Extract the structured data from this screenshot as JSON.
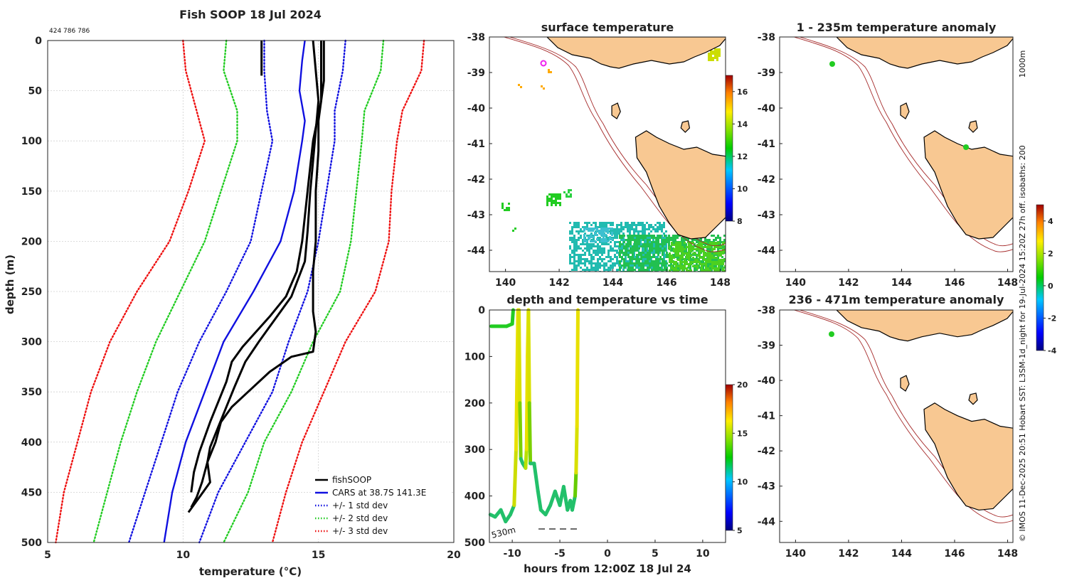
{
  "chart_data": [
    {
      "type": "line",
      "title": "Fish SOOP 18 Jul 2024",
      "subtitle": "424 786 786",
      "xlabel": "temperature (°C)",
      "ylabel": "depth (m)",
      "xlim": [
        5,
        20
      ],
      "ylim": [
        500,
        0
      ],
      "xticks": [
        "5",
        "10",
        "15",
        "20"
      ],
      "yticks": [
        "0",
        "50",
        "100",
        "150",
        "200",
        "250",
        "300",
        "350",
        "400",
        "450",
        "500"
      ],
      "legend": {
        "position": "bottom-right",
        "entries": [
          "fishSOOP",
          "CARS at 38.7S 141.3E",
          "+/- 1 std dev",
          "+/- 2 std dev",
          "+/- 3 std dev"
        ]
      },
      "series": [
        {
          "name": "CARS at 38.7S 141.3E",
          "color": "#1010e0",
          "style": "solid",
          "points": [
            [
              14.5,
              0
            ],
            [
              14.4,
              20
            ],
            [
              14.3,
              50
            ],
            [
              14.5,
              80
            ],
            [
              14.4,
              100
            ],
            [
              14.1,
              150
            ],
            [
              13.6,
              200
            ],
            [
              12.6,
              250
            ],
            [
              11.5,
              300
            ],
            [
              10.8,
              350
            ],
            [
              10.1,
              400
            ],
            [
              9.6,
              450
            ],
            [
              9.3,
              500
            ]
          ]
        },
        {
          "name": "+/- 1 std dev (high)",
          "color": "#1010e0",
          "style": "dotted",
          "points": [
            [
              16.0,
              0
            ],
            [
              15.9,
              30
            ],
            [
              15.6,
              70
            ],
            [
              15.6,
              100
            ],
            [
              15.3,
              150
            ],
            [
              15.0,
              200
            ],
            [
              14.6,
              250
            ],
            [
              13.9,
              300
            ],
            [
              13.3,
              350
            ],
            [
              12.3,
              400
            ],
            [
              11.3,
              450
            ],
            [
              10.6,
              500
            ]
          ]
        },
        {
          "name": "+/- 1 std dev (low)",
          "color": "#1010e0",
          "style": "dotted",
          "points": [
            [
              13.0,
              0
            ],
            [
              13.0,
              30
            ],
            [
              13.1,
              70
            ],
            [
              13.3,
              100
            ],
            [
              12.9,
              150
            ],
            [
              12.5,
              200
            ],
            [
              11.6,
              250
            ],
            [
              10.6,
              300
            ],
            [
              9.8,
              350
            ],
            [
              9.2,
              400
            ],
            [
              8.6,
              450
            ],
            [
              8.0,
              500
            ]
          ]
        },
        {
          "name": "+/- 2 std dev (high)",
          "color": "#22cc22",
          "style": "dotted",
          "points": [
            [
              17.4,
              0
            ],
            [
              17.3,
              30
            ],
            [
              16.7,
              70
            ],
            [
              16.6,
              100
            ],
            [
              16.4,
              150
            ],
            [
              16.2,
              200
            ],
            [
              15.8,
              250
            ],
            [
              14.8,
              300
            ],
            [
              14.0,
              350
            ],
            [
              13.0,
              400
            ],
            [
              12.4,
              450
            ],
            [
              11.5,
              500
            ]
          ]
        },
        {
          "name": "+/- 2 std dev (low)",
          "color": "#22cc22",
          "style": "dotted",
          "points": [
            [
              11.6,
              0
            ],
            [
              11.5,
              30
            ],
            [
              12.0,
              70
            ],
            [
              12.0,
              100
            ],
            [
              11.4,
              150
            ],
            [
              10.8,
              200
            ],
            [
              9.9,
              250
            ],
            [
              9.0,
              300
            ],
            [
              8.3,
              350
            ],
            [
              7.7,
              400
            ],
            [
              7.2,
              450
            ],
            [
              6.7,
              500
            ]
          ]
        },
        {
          "name": "+/- 3 std dev (high)",
          "color": "#ee1111",
          "style": "dotted",
          "points": [
            [
              18.9,
              0
            ],
            [
              18.8,
              30
            ],
            [
              18.1,
              70
            ],
            [
              17.9,
              100
            ],
            [
              17.7,
              150
            ],
            [
              17.6,
              200
            ],
            [
              17.1,
              250
            ],
            [
              16.0,
              300
            ],
            [
              15.2,
              350
            ],
            [
              14.4,
              400
            ],
            [
              13.8,
              450
            ],
            [
              13.3,
              500
            ]
          ]
        },
        {
          "name": "+/- 3 std dev (low)",
          "color": "#ee1111",
          "style": "dotted",
          "points": [
            [
              10.0,
              0
            ],
            [
              10.1,
              30
            ],
            [
              10.5,
              70
            ],
            [
              10.8,
              100
            ],
            [
              10.2,
              150
            ],
            [
              9.5,
              200
            ],
            [
              8.3,
              250
            ],
            [
              7.3,
              300
            ],
            [
              6.6,
              350
            ],
            [
              6.1,
              400
            ],
            [
              5.6,
              450
            ],
            [
              5.3,
              500
            ]
          ]
        },
        {
          "name": "fishSOOP",
          "color": "#000000",
          "style": "solid",
          "points": [
            [
              12.9,
              0
            ],
            [
              12.9,
              35
            ]
          ]
        },
        {
          "name": "fishSOOP",
          "color": "#000000",
          "style": "solid",
          "points": [
            [
              14.8,
              0
            ],
            [
              14.9,
              30
            ],
            [
              15.0,
              60
            ],
            [
              14.9,
              90
            ],
            [
              14.8,
              120
            ],
            [
              14.7,
              150
            ],
            [
              14.6,
              190
            ],
            [
              14.5,
              220
            ],
            [
              14.0,
              255
            ],
            [
              13.6,
              270
            ],
            [
              13.2,
              285
            ],
            [
              12.8,
              300
            ],
            [
              12.3,
              320
            ],
            [
              11.9,
              345
            ],
            [
              11.6,
              365
            ],
            [
              11.3,
              385
            ],
            [
              11.0,
              405
            ],
            [
              10.9,
              420
            ],
            [
              11.0,
              440
            ],
            [
              10.6,
              455
            ],
            [
              10.2,
              470
            ]
          ]
        },
        {
          "name": "fishSOOP",
          "color": "#000000",
          "style": "solid",
          "points": [
            [
              15.2,
              0
            ],
            [
              15.2,
              40
            ],
            [
              15.0,
              80
            ],
            [
              15.0,
              110
            ],
            [
              14.9,
              150
            ],
            [
              14.9,
              200
            ],
            [
              14.8,
              230
            ],
            [
              14.8,
              270
            ],
            [
              14.9,
              290
            ],
            [
              14.8,
              310
            ],
            [
              14.0,
              315
            ],
            [
              13.2,
              330
            ],
            [
              12.4,
              350
            ],
            [
              11.8,
              365
            ],
            [
              11.4,
              380
            ],
            [
              11.2,
              400
            ],
            [
              10.9,
              420
            ],
            [
              10.7,
              440
            ],
            [
              10.5,
              455
            ],
            [
              10.3,
              465
            ]
          ]
        },
        {
          "name": "fishSOOP",
          "color": "#000000",
          "style": "solid",
          "points": [
            [
              15.1,
              0
            ],
            [
              15.1,
              60
            ],
            [
              14.8,
              100
            ],
            [
              14.6,
              150
            ],
            [
              14.4,
              200
            ],
            [
              14.2,
              230
            ],
            [
              13.8,
              255
            ],
            [
              13.2,
              275
            ],
            [
              12.7,
              290
            ],
            [
              12.2,
              305
            ],
            [
              11.8,
              320
            ],
            [
              11.6,
              340
            ],
            [
              11.3,
              360
            ],
            [
              11.0,
              380
            ],
            [
              10.8,
              395
            ],
            [
              10.6,
              410
            ],
            [
              10.4,
              430
            ],
            [
              10.3,
              450
            ]
          ]
        }
      ]
    },
    {
      "type": "heatmap",
      "title": "surface temperature",
      "xlim": [
        139.4,
        148.2
      ],
      "ylim": [
        -44.6,
        -38
      ],
      "xticks": [
        "140",
        "142",
        "144",
        "146",
        "148"
      ],
      "yticks": [
        "-38",
        "-39",
        "-40",
        "-41",
        "-42",
        "-43",
        "-44"
      ],
      "colorbar": {
        "range": [
          8,
          17
        ],
        "ticks": [
          "8",
          "10",
          "12",
          "14",
          "16"
        ]
      }
    },
    {
      "type": "scatter",
      "title": "depth and temperature vs time",
      "xlabel": "hours from 12:00Z 18 Jul 24",
      "xlim": [
        -12.4,
        12.4
      ],
      "ylim": [
        500,
        0
      ],
      "xticks": [
        "-10",
        "-5",
        "0",
        "5",
        "10"
      ],
      "yticks": [
        "0",
        "100",
        "200",
        "300",
        "400",
        "500"
      ],
      "annotation": "530m",
      "colorbar": {
        "range": [
          5,
          20
        ],
        "ticks": [
          "5",
          "10",
          "15",
          "20"
        ]
      }
    },
    {
      "type": "heatmap",
      "title": "1 - 235m temperature anomaly",
      "xlim": [
        139.4,
        148.2
      ],
      "ylim": [
        -44.6,
        -38
      ],
      "xticks": [
        "140",
        "142",
        "144",
        "146",
        "148"
      ],
      "yticks": [
        "-38",
        "-39",
        "-40",
        "-41",
        "-42",
        "-43",
        "-44"
      ],
      "colorbar": {
        "range": [
          -4,
          5
        ],
        "ticks": [
          "-4",
          "-2",
          "0",
          "2",
          "4"
        ]
      }
    },
    {
      "type": "heatmap",
      "title": "236 - 471m temperature anomaly",
      "xlim": [
        139.4,
        148.2
      ],
      "ylim": [
        -44.6,
        -38
      ],
      "xticks": [
        "140",
        "142",
        "144",
        "146",
        "148"
      ],
      "yticks": [
        "-38",
        "-39",
        "-40",
        "-41",
        "-42",
        "-43",
        "-44"
      ]
    }
  ],
  "credits": {
    "top": "1000m",
    "side": "© IMOS 11-Dec-2025 20:51 Hobart SST: L3SM-1d_night for 19-Jul-2024 15:20Z 27h off. isobaths: 200"
  },
  "colors": {
    "land": "#f8c892",
    "isobath": "#a52a2a",
    "cars": "#1010e0",
    "std1": "#1010e0",
    "std2": "#22cc22",
    "std3": "#ee1111",
    "fish": "#000000"
  }
}
